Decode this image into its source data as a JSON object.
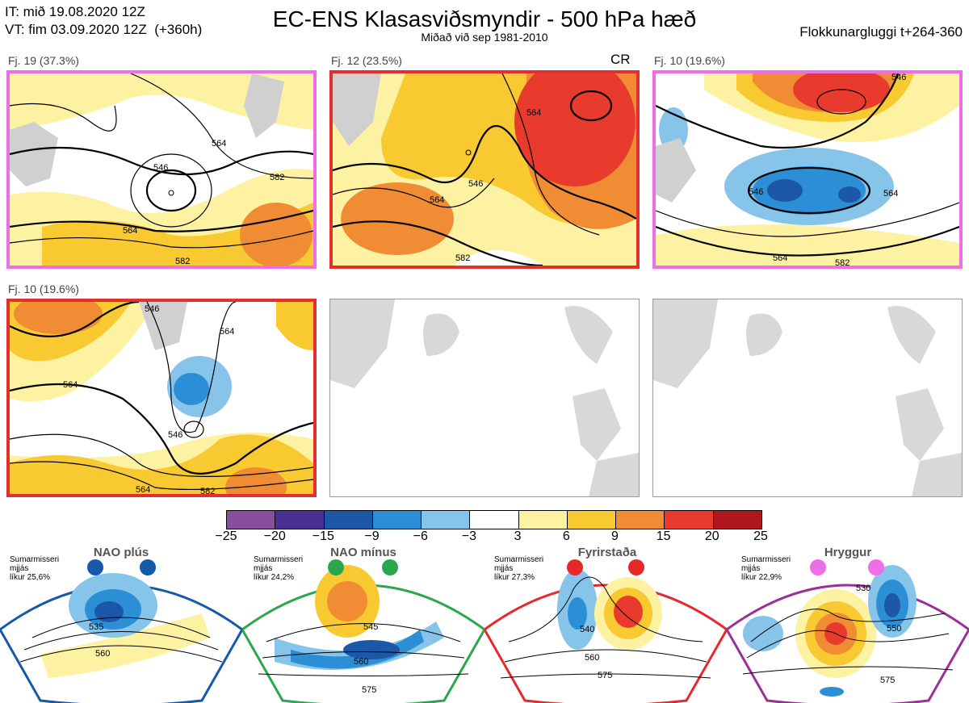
{
  "header": {
    "line1": "IT: mið 19.08.2020 12Z",
    "line2": "VT: fim 03.09.2020 12Z  (+360h)",
    "title": "EC-ENS Klasasviðsmyndir - 500 hPa hæð",
    "subtitle": "Miðað við sep 1981-2010",
    "window": "Flokkunargluggi t+264-360"
  },
  "panels": [
    {
      "label": "Fj. 19 (37.3%)",
      "badge": "",
      "border": "#ee6ee6",
      "contours": [
        "546",
        "564",
        "582",
        "564",
        "582"
      ]
    },
    {
      "label": "Fj. 12 (23.5%)",
      "badge": "CR",
      "border": "#e3302e",
      "contours": [
        "546",
        "564",
        "564",
        "582"
      ]
    },
    {
      "label": "Fj. 10 (19.6%)",
      "badge": "",
      "border": "#ee6ee6",
      "contours": [
        "546",
        "546",
        "564",
        "564",
        "582"
      ]
    },
    {
      "label": "Fj. 10 (19.6%)",
      "badge": "",
      "border": "#e3302e",
      "contours": [
        "546",
        "564",
        "546",
        "564",
        "564",
        "582"
      ]
    }
  ],
  "colorbar": {
    "colors": [
      "#8a4e9e",
      "#4b2f94",
      "#1c57a8",
      "#2c8fd6",
      "#86c4ea",
      "#ffffff",
      "#fdf1a2",
      "#f8c930",
      "#f08c33",
      "#e83a2d",
      "#b0161d"
    ],
    "ticks": [
      "−25",
      "−20",
      "−15",
      "−9",
      "−6",
      "−3",
      "3",
      "6",
      "9",
      "15",
      "20",
      "25"
    ]
  },
  "regimes": [
    {
      "title": "NAO plús",
      "season": "Sumarmisseri",
      "smooth": "mjjás",
      "prob": "líkur 25,6%",
      "color": "#1559a8",
      "labels": [
        "535",
        "560"
      ]
    },
    {
      "title": "NAO mínus",
      "season": "Sumarmisseri",
      "smooth": "mjjás",
      "prob": "líkur 24,2%",
      "color": "#2aa64c",
      "labels": [
        "545",
        "560",
        "575"
      ]
    },
    {
      "title": "Fyrirstaða",
      "season": "Sumarmisseri",
      "smooth": "mjjás",
      "prob": "líkur 27,3%",
      "color": "#e6282b",
      "labels": [
        "540",
        "560",
        "575"
      ]
    },
    {
      "title": "Hryggur",
      "season": "Sumarmisseri",
      "smooth": "mjjás",
      "prob": "líkur 22,9%",
      "color": "#ee6ee6",
      "border": "#9b2f96",
      "labels": [
        "530",
        "550",
        "575"
      ]
    }
  ]
}
